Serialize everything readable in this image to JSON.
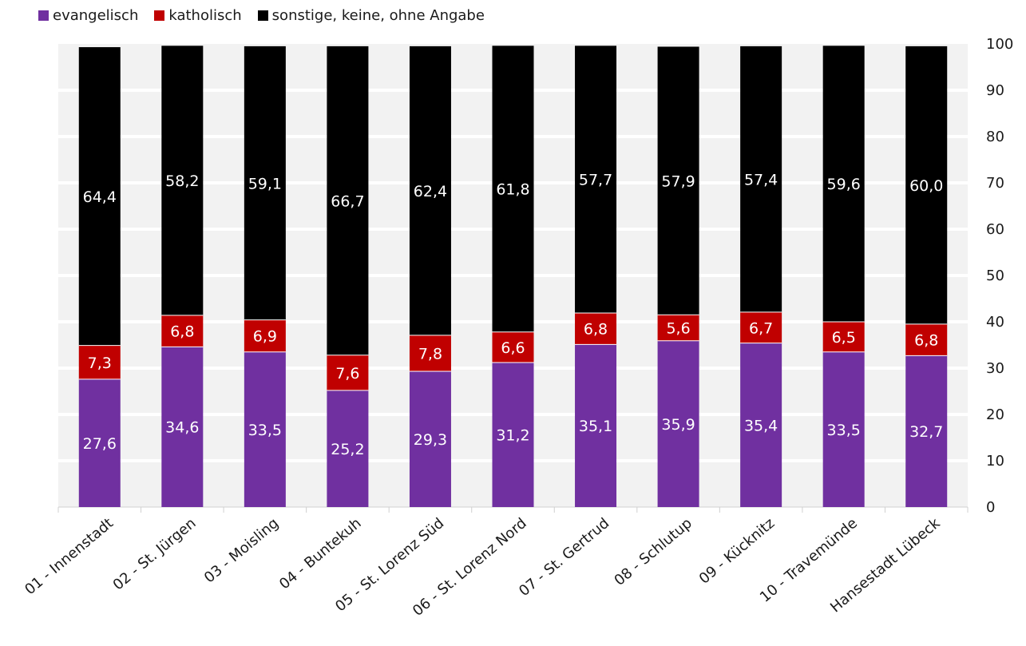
{
  "chart_data": {
    "type": "bar",
    "stacked": true,
    "categories": [
      "01 - Innenstadt",
      "02 - St. Jürgen",
      "03 - Moisling",
      "04 - Buntekuh",
      "05 - St. Lorenz Süd",
      "06 - St. Lorenz Nord",
      "07 - St. Gertrud",
      "08 - Schlutup",
      "09 - Kücknitz",
      "10 - Travemünde",
      "Hansestadt Lübeck"
    ],
    "series": [
      {
        "name": "evangelisch",
        "color": "#7030a0",
        "values": [
          27.6,
          34.6,
          33.5,
          25.2,
          29.3,
          31.2,
          35.1,
          35.9,
          35.4,
          33.5,
          32.7
        ],
        "labels": [
          "27,6",
          "34,6",
          "33,5",
          "25,2",
          "29,3",
          "31,2",
          "35,1",
          "35,9",
          "35,4",
          "33,5",
          "32,7"
        ]
      },
      {
        "name": "katholisch",
        "color": "#c00000",
        "values": [
          7.3,
          6.8,
          6.9,
          7.6,
          7.8,
          6.6,
          6.8,
          5.6,
          6.7,
          6.5,
          6.8
        ],
        "labels": [
          "7,3",
          "6,8",
          "6,9",
          "7,6",
          "7,8",
          "6,6",
          "6,8",
          "5,6",
          "6,7",
          "6,5",
          "6,8"
        ]
      },
      {
        "name": "sonstige, keine, ohne Angabe",
        "color": "#000000",
        "values": [
          64.4,
          58.2,
          59.1,
          66.7,
          62.4,
          61.8,
          57.7,
          57.9,
          57.4,
          59.6,
          60.0
        ],
        "labels": [
          "64,4",
          "58,2",
          "59,1",
          "66,7",
          "62,4",
          "61,8",
          "57,7",
          "57,9",
          "57,4",
          "59,6",
          "60,0"
        ]
      }
    ],
    "yticks": [
      "0",
      "10",
      "20",
      "30",
      "40",
      "50",
      "60",
      "70",
      "80",
      "90",
      "100"
    ],
    "ylim": [
      0,
      100
    ],
    "y_axis_side": "right",
    "legend_position": "top-left",
    "grid": true,
    "plot_background": "#f2f2f2",
    "title": "",
    "xlabel": "",
    "ylabel": ""
  }
}
